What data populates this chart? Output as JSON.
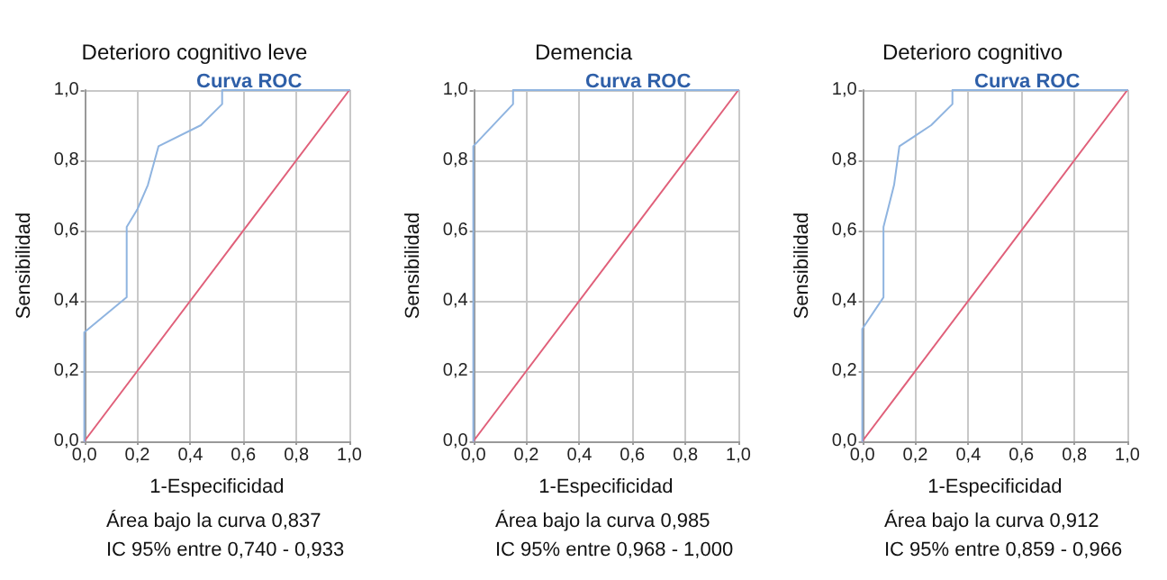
{
  "chart_data": [
    {
      "type": "line",
      "title": "Deterioro cognitivo leve",
      "subtitle": "Curva ROC",
      "xlabel": "1-Especificidad",
      "ylabel": "Sensibilidad",
      "annotations": [
        "Área bajo la curva 0,837",
        "IC 95% entre 0,740 - 0,933"
      ],
      "xlim": [
        0,
        1
      ],
      "ylim": [
        0,
        1
      ],
      "xticks": [
        {
          "value": 0,
          "label": "0,0"
        },
        {
          "value": 0.2,
          "label": "0,2"
        },
        {
          "value": 0.4,
          "label": "0,4"
        },
        {
          "value": 0.6,
          "label": "0,6"
        },
        {
          "value": 0.8,
          "label": "0,8"
        },
        {
          "value": 1,
          "label": "1,0"
        }
      ],
      "yticks": [
        {
          "value": 0,
          "label": "0,0"
        },
        {
          "value": 0.2,
          "label": "0,2"
        },
        {
          "value": 0.4,
          "label": "0,4"
        },
        {
          "value": 0.6,
          "label": "0,6"
        },
        {
          "value": 0.8,
          "label": "0,8"
        },
        {
          "value": 1,
          "label": "1,0"
        }
      ],
      "grid": true,
      "marker": "none",
      "line_style": "solid",
      "series": [
        {
          "color": "#8fb4e0",
          "x": [
            0,
            0,
            0.16,
            0.16,
            0.2,
            0.24,
            0.28,
            0.44,
            0.52,
            0.52,
            1
          ],
          "values": [
            0,
            0.31,
            0.41,
            0.61,
            0.66,
            0.73,
            0.84,
            0.9,
            0.96,
            1,
            1
          ]
        },
        {
          "color": "#e0607a",
          "x": [
            0,
            1
          ],
          "values": [
            0,
            1
          ]
        }
      ]
    },
    {
      "type": "line",
      "title": "Demencia",
      "subtitle": "Curva ROC",
      "xlabel": "1-Especificidad",
      "ylabel": "Sensibilidad",
      "annotations": [
        "Área bajo la curva 0,985",
        "IC 95% entre 0,968 - 1,000"
      ],
      "xlim": [
        0,
        1
      ],
      "ylim": [
        0,
        1
      ],
      "xticks": [
        {
          "value": 0,
          "label": "0,0"
        },
        {
          "value": 0.2,
          "label": "0,2"
        },
        {
          "value": 0.4,
          "label": "0,4"
        },
        {
          "value": 0.6,
          "label": "0,6"
        },
        {
          "value": 0.8,
          "label": "0,8"
        },
        {
          "value": 1,
          "label": "1,0"
        }
      ],
      "yticks": [
        {
          "value": 0,
          "label": "0,0"
        },
        {
          "value": 0.2,
          "label": "0,2"
        },
        {
          "value": 0.4,
          "label": "0,4"
        },
        {
          "value": 0.6,
          "label": "0,6"
        },
        {
          "value": 0.8,
          "label": "0,8"
        },
        {
          "value": 1,
          "label": "1,0"
        }
      ],
      "grid": true,
      "marker": "none",
      "line_style": "solid",
      "series": [
        {
          "color": "#8fb4e0",
          "x": [
            0,
            0,
            0.15,
            0.15,
            1
          ],
          "values": [
            0,
            0.84,
            0.96,
            1,
            1
          ]
        },
        {
          "color": "#e0607a",
          "x": [
            0,
            1
          ],
          "values": [
            0,
            1
          ]
        }
      ]
    },
    {
      "type": "line",
      "title": "Deterioro cognitivo",
      "subtitle": "Curva ROC",
      "xlabel": "1-Especificidad",
      "ylabel": "Sensibilidad",
      "annotations": [
        "Área bajo la curva 0,912",
        "IC 95% entre 0,859 - 0,966"
      ],
      "xlim": [
        0,
        1
      ],
      "ylim": [
        0,
        1
      ],
      "xticks": [
        {
          "value": 0,
          "label": "0,0"
        },
        {
          "value": 0.2,
          "label": "0,2"
        },
        {
          "value": 0.4,
          "label": "0,4"
        },
        {
          "value": 0.6,
          "label": "0,6"
        },
        {
          "value": 0.8,
          "label": "0,8"
        },
        {
          "value": 1,
          "label": "1,0"
        }
      ],
      "yticks": [
        {
          "value": 0,
          "label": "0,0"
        },
        {
          "value": 0.2,
          "label": "0,2"
        },
        {
          "value": 0.4,
          "label": "0,4"
        },
        {
          "value": 0.6,
          "label": "0,6"
        },
        {
          "value": 0.8,
          "label": "0,8"
        },
        {
          "value": 1,
          "label": "1,0"
        }
      ],
      "grid": true,
      "marker": "none",
      "line_style": "solid",
      "series": [
        {
          "color": "#8fb4e0",
          "x": [
            0,
            0,
            0.08,
            0.08,
            0.12,
            0.14,
            0.26,
            0.34,
            0.34,
            1
          ],
          "values": [
            0,
            0.32,
            0.41,
            0.61,
            0.73,
            0.84,
            0.9,
            0.96,
            1,
            1
          ]
        },
        {
          "color": "#e0607a",
          "x": [
            0,
            1
          ],
          "values": [
            0,
            1
          ]
        }
      ]
    }
  ]
}
